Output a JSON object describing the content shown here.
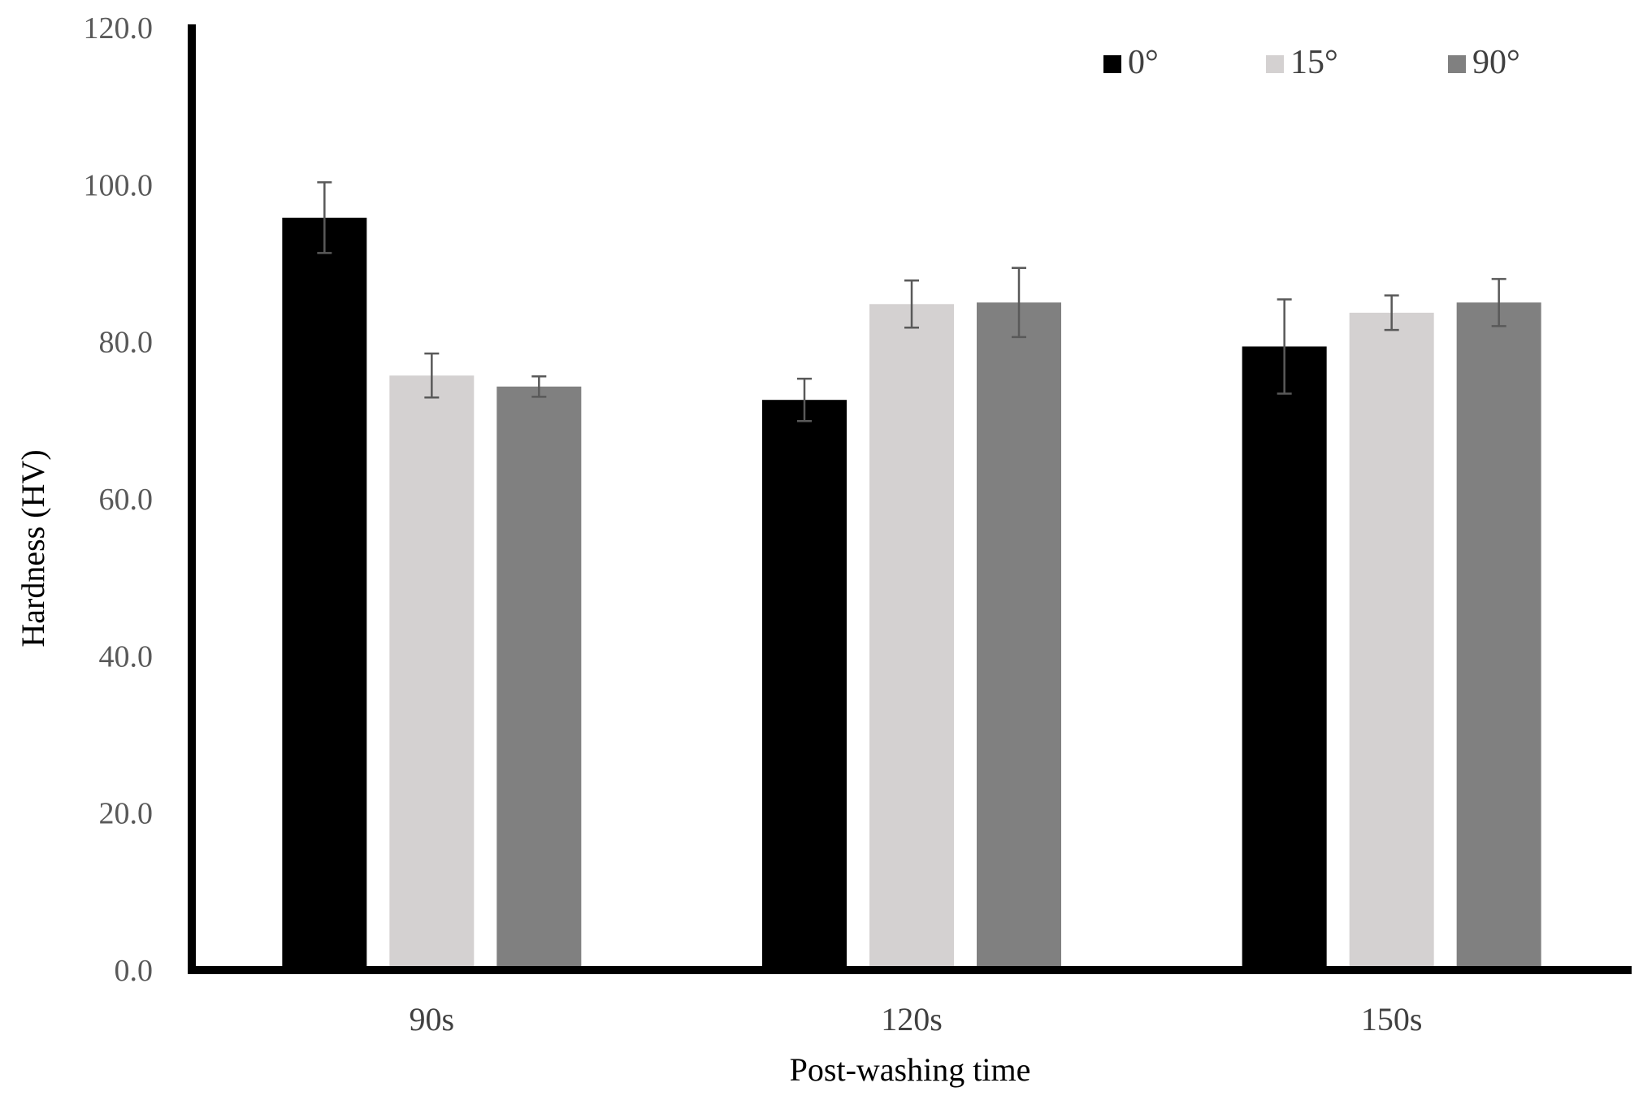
{
  "chart_data": {
    "type": "bar",
    "title": "",
    "xlabel": "Post-washing time",
    "ylabel": "Hardness (HV)",
    "categories": [
      "90s",
      "120s",
      "150s"
    ],
    "yticks": [
      "0.0",
      "20.0",
      "40.0",
      "60.0",
      "80.0",
      "100.0",
      "120.0"
    ],
    "ylim": [
      0,
      120
    ],
    "grid": false,
    "legend_position": "top-right",
    "series": [
      {
        "name": "0°",
        "color": "#000000",
        "values": [
          95.8,
          72.6,
          79.4
        ],
        "errors": [
          4.5,
          2.7,
          6.0
        ]
      },
      {
        "name": "15°",
        "color": "#d4d1d1",
        "values": [
          75.7,
          84.8,
          83.7
        ],
        "errors": [
          2.8,
          3.0,
          2.2
        ]
      },
      {
        "name": "90°",
        "color": "#808080",
        "values": [
          74.3,
          85.0,
          85.0
        ],
        "errors": [
          1.3,
          4.4,
          3.0
        ]
      }
    ]
  }
}
